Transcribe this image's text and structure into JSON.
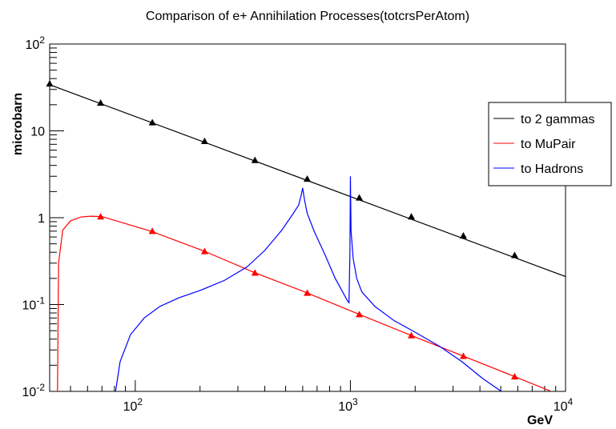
{
  "chart_data": {
    "type": "line",
    "title": "Comparison of e+ Annihilation Processes(totcrsPerAtom)",
    "xlabel": "GeV",
    "ylabel": "microbarn",
    "x_scale": "log",
    "y_scale": "log",
    "xlim": [
      40,
      10000
    ],
    "ylim": [
      0.01,
      100
    ],
    "x_ticks": [
      {
        "value": 100,
        "base": "10",
        "exp": "2"
      },
      {
        "value": 1000,
        "base": "10",
        "exp": "3"
      },
      {
        "value": 10000,
        "base": "10",
        "exp": "4"
      }
    ],
    "y_ticks": [
      {
        "value": 0.01,
        "base": "10",
        "exp": "-2"
      },
      {
        "value": 0.1,
        "base": "10",
        "exp": "-1"
      },
      {
        "value": 1,
        "base": "1",
        "exp": ""
      },
      {
        "value": 10,
        "base": "10",
        "exp": ""
      },
      {
        "value": 100,
        "base": "10",
        "exp": "2"
      }
    ],
    "legend": {
      "placement": "top-right"
    },
    "series": [
      {
        "name": "to 2 gammas",
        "color": "#000000",
        "marker": "triangle",
        "line": [
          [
            40,
            34
          ],
          [
            10000,
            0.21
          ]
        ],
        "markers": [
          [
            40,
            35
          ],
          [
            69,
            21
          ],
          [
            120,
            12.5
          ],
          [
            210,
            7.6
          ],
          [
            360,
            4.6
          ],
          [
            630,
            2.8
          ],
          [
            1100,
            1.7
          ],
          [
            1920,
            1.03
          ],
          [
            3350,
            0.62
          ],
          [
            5800,
            0.37
          ]
        ]
      },
      {
        "name": "to MuPair",
        "color": "#ff0000",
        "marker": "triangle",
        "line": [
          [
            43.5,
            0.01
          ],
          [
            44,
            0.3
          ],
          [
            46,
            0.72
          ],
          [
            50,
            0.92
          ],
          [
            56,
            1.02
          ],
          [
            62,
            1.04
          ],
          [
            70,
            1.03
          ],
          [
            120,
            0.69
          ],
          [
            210,
            0.41
          ],
          [
            360,
            0.232
          ],
          [
            630,
            0.136
          ],
          [
            1100,
            0.077
          ],
          [
            1920,
            0.044
          ],
          [
            3350,
            0.0255
          ],
          [
            5800,
            0.0148
          ],
          [
            8500,
            0.0101
          ]
        ],
        "markers": [
          [
            69,
            1.03
          ],
          [
            120,
            0.7
          ],
          [
            210,
            0.41
          ],
          [
            360,
            0.232
          ],
          [
            630,
            0.136
          ],
          [
            1100,
            0.077
          ],
          [
            1920,
            0.044
          ],
          [
            3350,
            0.0255
          ],
          [
            5800,
            0.0148
          ]
        ]
      },
      {
        "name": "to Hadrons",
        "color": "#0000ff",
        "marker": "none",
        "line": [
          [
            81,
            0.01
          ],
          [
            85,
            0.022
          ],
          [
            95,
            0.045
          ],
          [
            110,
            0.07
          ],
          [
            130,
            0.095
          ],
          [
            160,
            0.12
          ],
          [
            200,
            0.145
          ],
          [
            260,
            0.19
          ],
          [
            330,
            0.27
          ],
          [
            400,
            0.42
          ],
          [
            480,
            0.72
          ],
          [
            540,
            1.1
          ],
          [
            575,
            1.4
          ],
          [
            590,
            1.8
          ],
          [
            600,
            2.2
          ],
          [
            612,
            1.6
          ],
          [
            630,
            1.12
          ],
          [
            680,
            0.69
          ],
          [
            760,
            0.38
          ],
          [
            850,
            0.2
          ],
          [
            920,
            0.14
          ],
          [
            970,
            0.11
          ],
          [
            985,
            0.105
          ],
          [
            995,
            0.4
          ],
          [
            1000,
            3.0
          ],
          [
            1007,
            0.7
          ],
          [
            1030,
            0.34
          ],
          [
            1070,
            0.2
          ],
          [
            1130,
            0.14
          ],
          [
            1300,
            0.095
          ],
          [
            1600,
            0.065
          ],
          [
            2000,
            0.048
          ],
          [
            2600,
            0.033
          ],
          [
            3300,
            0.022
          ],
          [
            4100,
            0.0142
          ],
          [
            5000,
            0.0101
          ]
        ],
        "markers": []
      }
    ]
  }
}
